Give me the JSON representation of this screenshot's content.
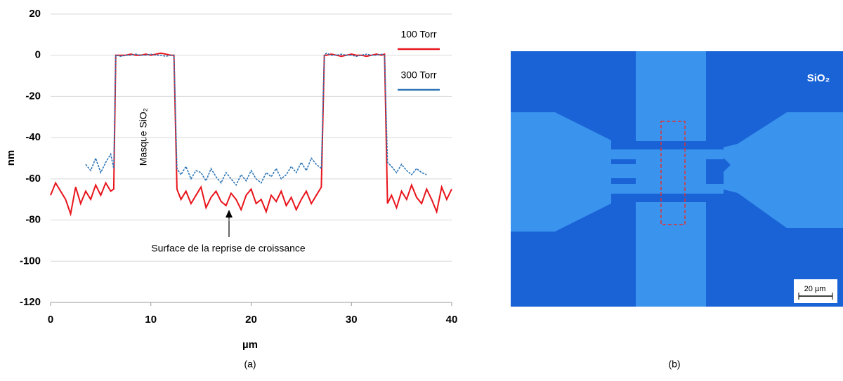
{
  "chart_data": {
    "type": "line",
    "xlabel": "µm",
    "ylabel": "nm",
    "xlim": [
      0,
      40
    ],
    "xticks": [
      0,
      10,
      20,
      30,
      40
    ],
    "ylim": [
      -120,
      20
    ],
    "yticks": [
      -120,
      -100,
      -80,
      -60,
      -40,
      -20,
      0,
      20
    ],
    "grid": true,
    "legend": "upper right",
    "annotations": [
      "Masque SiO₂",
      "Surface de la reprise de croissance"
    ],
    "x": [
      0,
      0.5,
      1,
      1.5,
      2,
      2.5,
      3,
      3.5,
      4,
      4.5,
      5,
      5.5,
      6,
      6.3,
      6.5,
      7,
      7.5,
      8,
      8.5,
      9,
      9.5,
      10,
      10.5,
      11,
      11.5,
      12,
      12.3,
      12.6,
      13,
      13.5,
      14,
      14.5,
      15,
      15.5,
      16,
      16.5,
      17,
      17.5,
      18,
      18.5,
      19,
      19.5,
      20,
      20.5,
      21,
      21.5,
      22,
      22.5,
      23,
      23.5,
      24,
      24.5,
      25,
      25.5,
      26,
      26.5,
      27,
      27.3,
      27.5,
      28,
      28.5,
      29,
      29.5,
      30,
      30.5,
      31,
      31.5,
      32,
      32.5,
      33,
      33.3,
      33.6,
      34,
      34.5,
      35,
      35.5,
      36,
      36.5,
      37,
      37.5,
      38,
      38.5,
      39,
      39.5,
      40
    ],
    "series": [
      {
        "name": "100 Torr",
        "color": "#e8141b",
        "dash": false,
        "values": [
          -68,
          -62,
          -66,
          -70,
          -77,
          -64,
          -72,
          -66,
          -70,
          -63,
          -68,
          -62,
          -66,
          -65,
          0,
          0,
          0,
          0.5,
          0,
          0,
          0.5,
          0,
          0.5,
          1,
          0.5,
          0,
          0,
          -65,
          -70,
          -66,
          -72,
          -68,
          -64,
          -74,
          -69,
          -66,
          -71,
          -73,
          -67,
          -70,
          -75,
          -68,
          -65,
          -72,
          -70,
          -76,
          -68,
          -71,
          -66,
          -73,
          -69,
          -75,
          -70,
          -66,
          -72,
          -68,
          -64,
          0,
          0,
          0.5,
          0,
          -0.5,
          0,
          0.5,
          0,
          0,
          -0.5,
          0,
          0.5,
          0,
          0.5,
          -72,
          -68,
          -74,
          -66,
          -70,
          -63,
          -69,
          -72,
          -65,
          -70,
          -76,
          -64,
          -70,
          -65
        ]
      },
      {
        "name": "300 Torr",
        "color": "#2e75b6",
        "dash": true,
        "values": [
          null,
          null,
          null,
          null,
          null,
          null,
          null,
          -53,
          -56,
          -50,
          -57,
          -52,
          -48,
          -55,
          0,
          -0.5,
          0,
          0,
          0.5,
          0,
          0,
          0.5,
          0,
          0,
          -0.5,
          0,
          0,
          -55,
          -58,
          -54,
          -60,
          -56,
          -57,
          -61,
          -55,
          -59,
          -62,
          -57,
          -60,
          -63,
          -58,
          -61,
          -56,
          -60,
          -62,
          -57,
          -59,
          -55,
          -60,
          -58,
          -54,
          -57,
          -52,
          -56,
          -50,
          -53,
          -55,
          0,
          1,
          0,
          0,
          0.5,
          0,
          0,
          -0.5,
          0,
          0.5,
          0,
          0,
          0.5,
          0,
          -52,
          -54,
          -57,
          -53,
          -56,
          -58,
          -55,
          -57,
          -58,
          null,
          null,
          null,
          null,
          null
        ]
      }
    ]
  },
  "image": {
    "label": "SiO₂",
    "scale_bar": "20 µm"
  },
  "captions": [
    "(a)",
    "(b)"
  ]
}
